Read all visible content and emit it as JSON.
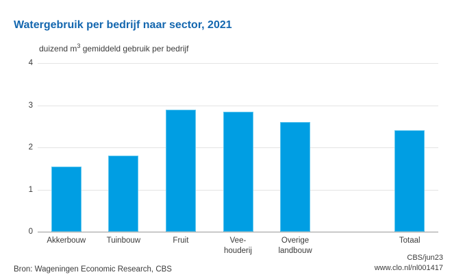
{
  "title": "Watergebruik per bedrijf naar sector, 2021",
  "subtitle": {
    "prefix": "duizend m",
    "sup": "3",
    "suffix": " gemiddeld gebruik per bedrijf"
  },
  "source": "Bron: Wageningen Economic Research, CBS",
  "credit": {
    "line1": "CBS/jun23",
    "line2": "www.clo.nl/nl001417"
  },
  "colors": {
    "bar": "#009ee3",
    "bar_edge": "#5fc6ee",
    "title": "#1467af",
    "grid": "#e4e4e4",
    "axis": "#999999",
    "text": "#3a3a3a"
  },
  "chart_data": {
    "type": "bar",
    "categories": [
      "Akkerbouw",
      "Tuinbouw",
      "Fruit",
      "Vee-\nhouderij",
      "Overige\nlandbouw",
      "Totaal"
    ],
    "values": [
      1.55,
      1.8,
      2.9,
      2.85,
      2.6,
      2.4
    ],
    "title": "Watergebruik per bedrijf naar sector, 2021",
    "xlabel": "",
    "ylabel": "duizend m³ gemiddeld gebruik per bedrijf",
    "ylim": [
      0,
      4
    ],
    "yticks": [
      0,
      1,
      2,
      3,
      4
    ],
    "grid": true,
    "legend": false,
    "layout": {
      "num_slots": 7,
      "slot_indices": [
        0,
        1,
        2,
        3,
        4,
        6
      ],
      "note": "empty slot between Overige landbouw and Totaal"
    }
  }
}
